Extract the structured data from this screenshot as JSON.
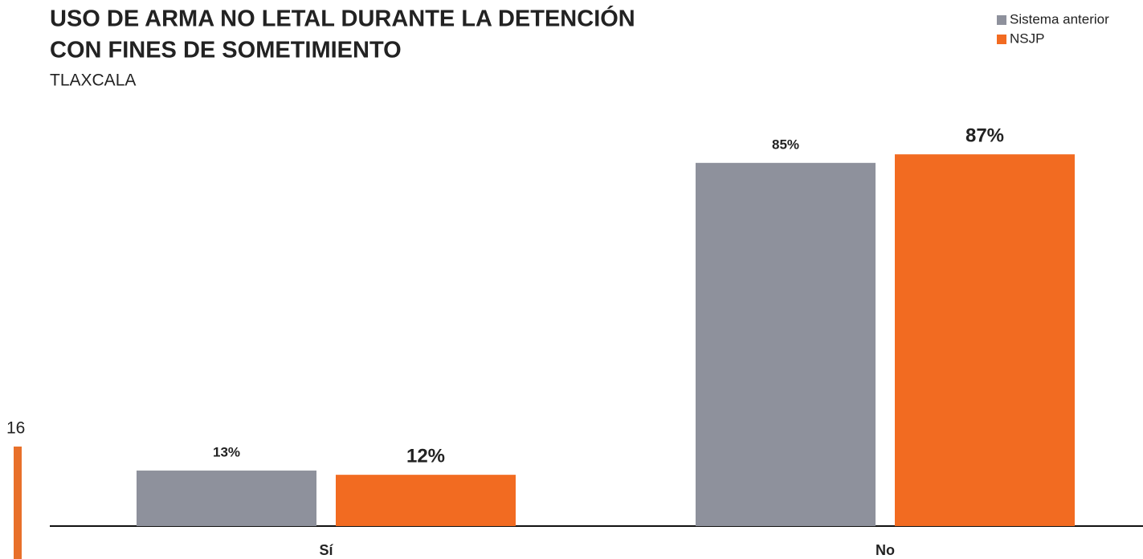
{
  "page_number": "16",
  "chart_data": {
    "type": "bar",
    "title": [
      "USO DE ARMA NO LETAL DURANTE LA DETENCIÓN",
      "CON FINES DE SOMETIMIENTO"
    ],
    "subtitle": "TLAXCALA",
    "categories": [
      "Sí",
      "No"
    ],
    "series": [
      {
        "name": "Sistema anterior",
        "color": "#8e919c",
        "values": [
          13,
          85
        ],
        "value_labels": [
          "13%",
          "85%"
        ]
      },
      {
        "name": "NSJP",
        "color": "#f26b21",
        "values": [
          12,
          87
        ],
        "value_labels": [
          "12%",
          "87%"
        ]
      }
    ],
    "ylim": [
      0,
      100
    ],
    "legend": "top-right"
  }
}
